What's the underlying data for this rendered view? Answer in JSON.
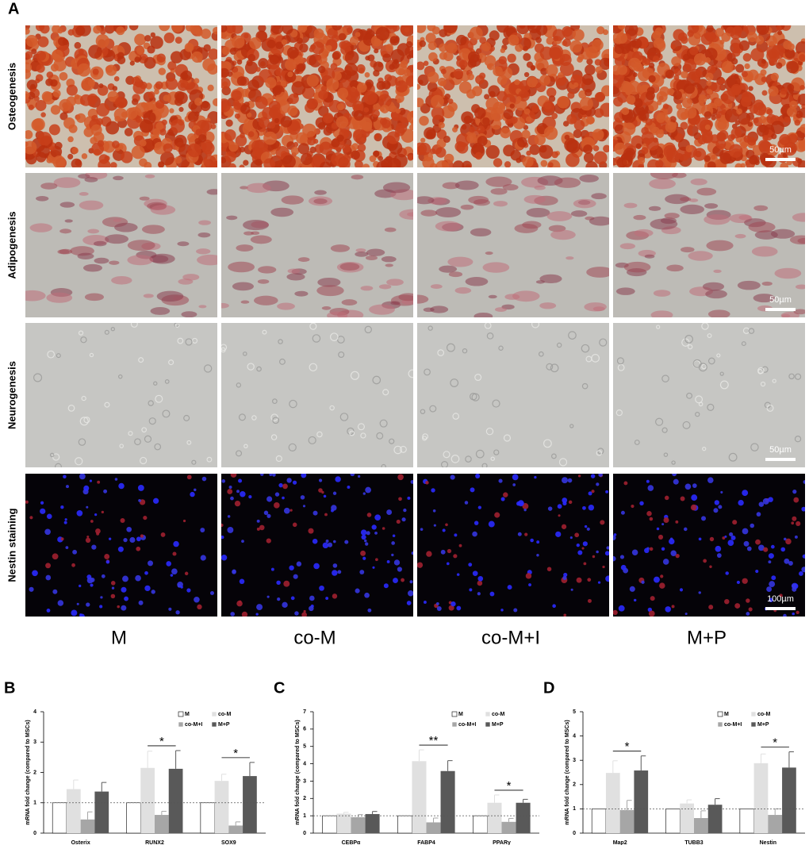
{
  "figure": {
    "panel": "A",
    "rows": [
      "Osteogenesis",
      "Adipogenesis",
      "Neurogenesis",
      "Nestin staining"
    ],
    "columns": [
      "M",
      "co-M",
      "co-M+I",
      "M+P"
    ],
    "scale_bars": [
      "50µm",
      "50µm",
      "50µm",
      "100µm"
    ]
  },
  "chart_data": [
    {
      "type": "bar",
      "panel": "B",
      "y_label": "mRNA fold change (compared to MSCs)",
      "categories": [
        "Osterix",
        "RUNX2",
        "SOX9"
      ],
      "series": [
        {
          "name": "M",
          "color": "#ffffff",
          "values": [
            1,
            1,
            1
          ],
          "errors": [
            0,
            0,
            0
          ]
        },
        {
          "name": "co-M",
          "color": "#e0e0e0",
          "values": [
            1.45,
            2.15,
            1.72
          ],
          "errors": [
            0.3,
            0.55,
            0.22
          ]
        },
        {
          "name": "co-M+I",
          "color": "#a6a6a6",
          "values": [
            0.45,
            0.6,
            0.25
          ],
          "errors": [
            0.25,
            0.12,
            0.12
          ]
        },
        {
          "name": "M+P",
          "color": "#595959",
          "values": [
            1.37,
            2.12,
            1.88
          ],
          "errors": [
            0.3,
            0.6,
            0.45
          ]
        }
      ],
      "ylim": [
        0,
        4
      ],
      "yticks": [
        0,
        1,
        2,
        3,
        4
      ],
      "reference_line": 1,
      "annotations": [
        {
          "text": "*",
          "category": "RUNX2"
        },
        {
          "text": "*",
          "category": "SOX9"
        }
      ]
    },
    {
      "type": "bar",
      "panel": "C",
      "y_label": "mRNA fold change (compared to MSCs)",
      "categories": [
        "CEBPα",
        "FABP4",
        "PPARγ"
      ],
      "series": [
        {
          "name": "M",
          "color": "#ffffff",
          "values": [
            1,
            1,
            1
          ],
          "errors": [
            0,
            0,
            0
          ]
        },
        {
          "name": "co-M",
          "color": "#e0e0e0",
          "values": [
            1.12,
            4.15,
            1.75
          ],
          "errors": [
            0.08,
            0.65,
            0.45
          ]
        },
        {
          "name": "co-M+I",
          "color": "#a6a6a6",
          "values": [
            0.92,
            0.62,
            0.65
          ],
          "errors": [
            0.15,
            0.25,
            0.2
          ]
        },
        {
          "name": "M+P",
          "color": "#595959",
          "values": [
            1.1,
            3.58,
            1.75
          ],
          "errors": [
            0.15,
            0.6,
            0.2
          ]
        }
      ],
      "ylim": [
        0,
        7
      ],
      "yticks": [
        0,
        1,
        2,
        3,
        4,
        5,
        6,
        7
      ],
      "reference_line": 1,
      "annotations": [
        {
          "text": "**",
          "category": "FABP4"
        },
        {
          "text": "*",
          "category": "PPARγ"
        }
      ]
    },
    {
      "type": "bar",
      "panel": "D",
      "y_label": "mRNA fold change (compared to MSCs)",
      "categories": [
        "Map2",
        "TUBB3",
        "Nestin"
      ],
      "series": [
        {
          "name": "M",
          "color": "#ffffff",
          "values": [
            1,
            1,
            1
          ],
          "errors": [
            0,
            0,
            0
          ]
        },
        {
          "name": "co-M",
          "color": "#e0e0e0",
          "values": [
            2.48,
            1.22,
            2.88
          ],
          "errors": [
            0.5,
            0.15,
            0.38
          ]
        },
        {
          "name": "co-M+I",
          "color": "#a6a6a6",
          "values": [
            0.95,
            0.62,
            0.75
          ],
          "errors": [
            0.4,
            0.3,
            0.25
          ]
        },
        {
          "name": "M+P",
          "color": "#595959",
          "values": [
            2.58,
            1.17,
            2.7
          ],
          "errors": [
            0.6,
            0.25,
            0.65
          ]
        }
      ],
      "ylim": [
        0,
        5
      ],
      "yticks": [
        0,
        1,
        2,
        3,
        4,
        5
      ],
      "reference_line": 1,
      "annotations": [
        {
          "text": "*",
          "category": "Map2"
        },
        {
          "text": "*",
          "category": "Nestin"
        }
      ]
    }
  ]
}
